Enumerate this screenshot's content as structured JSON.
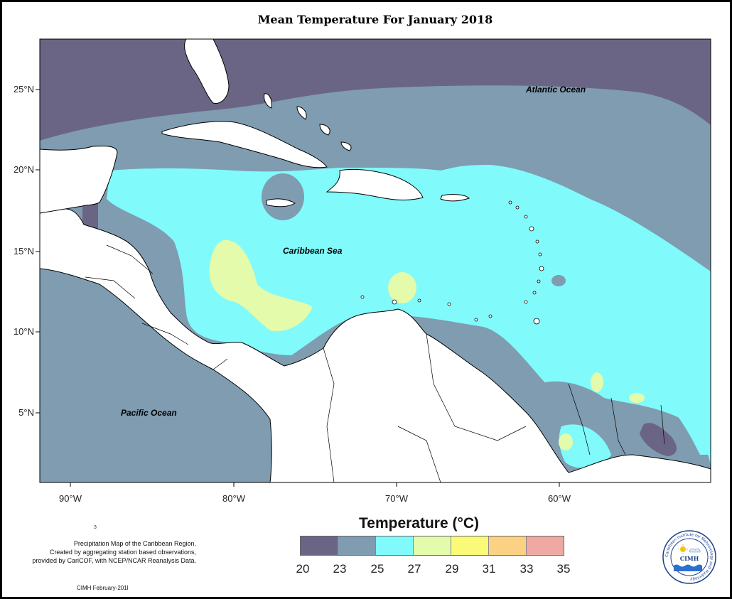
{
  "title": "Mean Temperature For January 2018",
  "lat_labels": [
    "25°N",
    "20°N",
    "15°N",
    "10°N",
    "5°N"
  ],
  "lon_labels": [
    "90°W",
    "80°W",
    "70°W",
    "60°W"
  ],
  "places": {
    "atlantic": "Atlantic Ocean",
    "caribbean": "Caribbean Sea",
    "pacific": "Pacific Ocean"
  },
  "legend": {
    "title": "Temperature (°C)",
    "ticks": [
      "20",
      "23",
      "25",
      "27",
      "29",
      "31",
      "33",
      "35"
    ],
    "colors": [
      "#6b6585",
      "#7f9cb1",
      "#80fafa",
      "#e3fbaa",
      "#fafa78",
      "#fbd184",
      "#eeaaa2"
    ]
  },
  "notes": {
    "line1": "Precipitation Map of the Caribbean Region.",
    "line2": "Created by aggregating station based observations,",
    "line3": "provided by CariCOF, with NCEP/NCAR Reanalysis Data."
  },
  "credit": "CIMH February-201l",
  "stray": "3",
  "logo": {
    "ring_text": "Caribbean Institute for Meteorology and Hydrology",
    "acronym": "CIMH"
  }
}
